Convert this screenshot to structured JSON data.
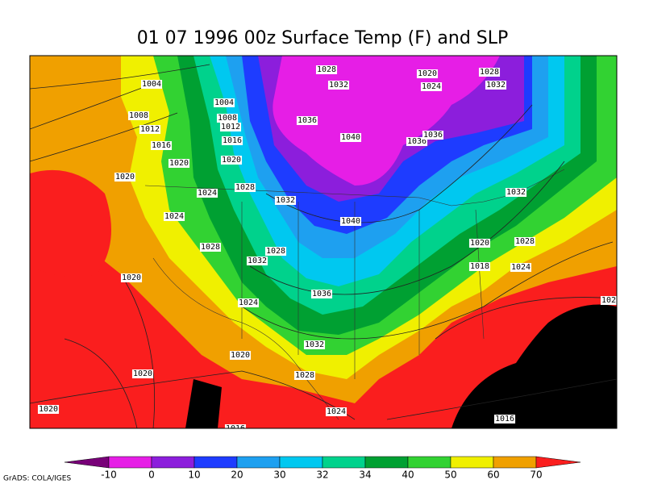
{
  "title": "01 07 1996 00z Surface Temp (F) and SLP",
  "isobar_labels": [
    1028,
    1020,
    1028,
    1032,
    1024,
    1032,
    1004,
    1004,
    1008,
    1008,
    1012,
    1012,
    1036,
    1040,
    1036,
    1036,
    1016,
    1016,
    1020,
    1020,
    1020,
    1024,
    1028,
    1032,
    1032,
    1024,
    1040,
    1028,
    1028,
    1032,
    1020,
    1028,
    1018,
    1024,
    1020,
    1036,
    1024,
    1020,
    1032,
    1020,
    1020,
    1028,
    1020,
    1024,
    1016,
    1016
  ],
  "colorbar": {
    "levels": [
      -10,
      0,
      10,
      20,
      30,
      32,
      34,
      40,
      50,
      60,
      70
    ],
    "colors": [
      "#780078",
      "#e61ee6",
      "#8c1edc",
      "#1e3cff",
      "#1ea0f0",
      "#00c8f0",
      "#00d28c",
      "#00a032",
      "#32d232",
      "#f0f000",
      "#f0a000",
      "#fa1e1e"
    ]
  },
  "credit": "GrADS: COLA/IGES"
}
